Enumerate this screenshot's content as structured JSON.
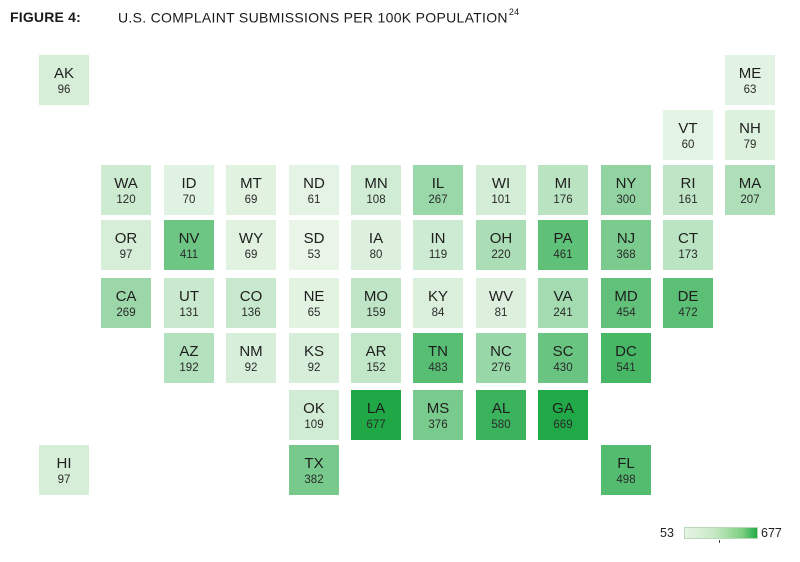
{
  "figure": {
    "label": "FIGURE 4:",
    "title": "U.S. COMPLAINT SUBMISSIONS PER 100K POPULATION",
    "footnote": "24"
  },
  "legend": {
    "min": "53",
    "max": "677"
  },
  "colors": {
    "low": "#e8f5e7",
    "high": "#1fa845"
  },
  "chart_data": {
    "type": "tile-map",
    "scale": {
      "min": 53,
      "max": 677
    },
    "states": [
      {
        "code": "AK",
        "value": 96,
        "row": 0,
        "col": 0
      },
      {
        "code": "ME",
        "value": 63,
        "row": 0,
        "col": 11
      },
      {
        "code": "VT",
        "value": 60,
        "row": 1,
        "col": 10
      },
      {
        "code": "NH",
        "value": 79,
        "row": 1,
        "col": 11
      },
      {
        "code": "WA",
        "value": 120,
        "row": 2,
        "col": 1
      },
      {
        "code": "ID",
        "value": 70,
        "row": 2,
        "col": 2
      },
      {
        "code": "MT",
        "value": 69,
        "row": 2,
        "col": 3
      },
      {
        "code": "ND",
        "value": 61,
        "row": 2,
        "col": 4
      },
      {
        "code": "MN",
        "value": 108,
        "row": 2,
        "col": 5
      },
      {
        "code": "IL",
        "value": 267,
        "row": 2,
        "col": 6
      },
      {
        "code": "WI",
        "value": 101,
        "row": 2,
        "col": 7
      },
      {
        "code": "MI",
        "value": 176,
        "row": 2,
        "col": 8
      },
      {
        "code": "NY",
        "value": 300,
        "row": 2,
        "col": 9
      },
      {
        "code": "RI",
        "value": 161,
        "row": 2,
        "col": 10
      },
      {
        "code": "MA",
        "value": 207,
        "row": 2,
        "col": 11
      },
      {
        "code": "OR",
        "value": 97,
        "row": 3,
        "col": 1
      },
      {
        "code": "NV",
        "value": 411,
        "row": 3,
        "col": 2
      },
      {
        "code": "WY",
        "value": 69,
        "row": 3,
        "col": 3
      },
      {
        "code": "SD",
        "value": 53,
        "row": 3,
        "col": 4
      },
      {
        "code": "IA",
        "value": 80,
        "row": 3,
        "col": 5
      },
      {
        "code": "IN",
        "value": 119,
        "row": 3,
        "col": 6
      },
      {
        "code": "OH",
        "value": 220,
        "row": 3,
        "col": 7
      },
      {
        "code": "PA",
        "value": 461,
        "row": 3,
        "col": 8
      },
      {
        "code": "NJ",
        "value": 368,
        "row": 3,
        "col": 9
      },
      {
        "code": "CT",
        "value": 173,
        "row": 3,
        "col": 10
      },
      {
        "code": "CA",
        "value": 269,
        "row": 4,
        "col": 1
      },
      {
        "code": "UT",
        "value": 131,
        "row": 4,
        "col": 2
      },
      {
        "code": "CO",
        "value": 136,
        "row": 4,
        "col": 3
      },
      {
        "code": "NE",
        "value": 65,
        "row": 4,
        "col": 4
      },
      {
        "code": "MO",
        "value": 159,
        "row": 4,
        "col": 5
      },
      {
        "code": "KY",
        "value": 84,
        "row": 4,
        "col": 6
      },
      {
        "code": "WV",
        "value": 81,
        "row": 4,
        "col": 7
      },
      {
        "code": "VA",
        "value": 241,
        "row": 4,
        "col": 8
      },
      {
        "code": "MD",
        "value": 454,
        "row": 4,
        "col": 9
      },
      {
        "code": "DE",
        "value": 472,
        "row": 4,
        "col": 10
      },
      {
        "code": "AZ",
        "value": 192,
        "row": 5,
        "col": 2
      },
      {
        "code": "NM",
        "value": 92,
        "row": 5,
        "col": 3
      },
      {
        "code": "KS",
        "value": 92,
        "row": 5,
        "col": 4
      },
      {
        "code": "AR",
        "value": 152,
        "row": 5,
        "col": 5
      },
      {
        "code": "TN",
        "value": 483,
        "row": 5,
        "col": 6
      },
      {
        "code": "NC",
        "value": 276,
        "row": 5,
        "col": 7
      },
      {
        "code": "SC",
        "value": 430,
        "row": 5,
        "col": 8
      },
      {
        "code": "DC",
        "value": 541,
        "row": 5,
        "col": 9
      },
      {
        "code": "OK",
        "value": 109,
        "row": 6,
        "col": 4
      },
      {
        "code": "LA",
        "value": 677,
        "row": 6,
        "col": 5
      },
      {
        "code": "MS",
        "value": 376,
        "row": 6,
        "col": 6
      },
      {
        "code": "AL",
        "value": 580,
        "row": 6,
        "col": 7
      },
      {
        "code": "GA",
        "value": 669,
        "row": 6,
        "col": 8
      },
      {
        "code": "HI",
        "value": 97,
        "row": 7,
        "col": 0
      },
      {
        "code": "TX",
        "value": 382,
        "row": 7,
        "col": 4
      },
      {
        "code": "FL",
        "value": 498,
        "row": 7,
        "col": 9
      }
    ]
  }
}
